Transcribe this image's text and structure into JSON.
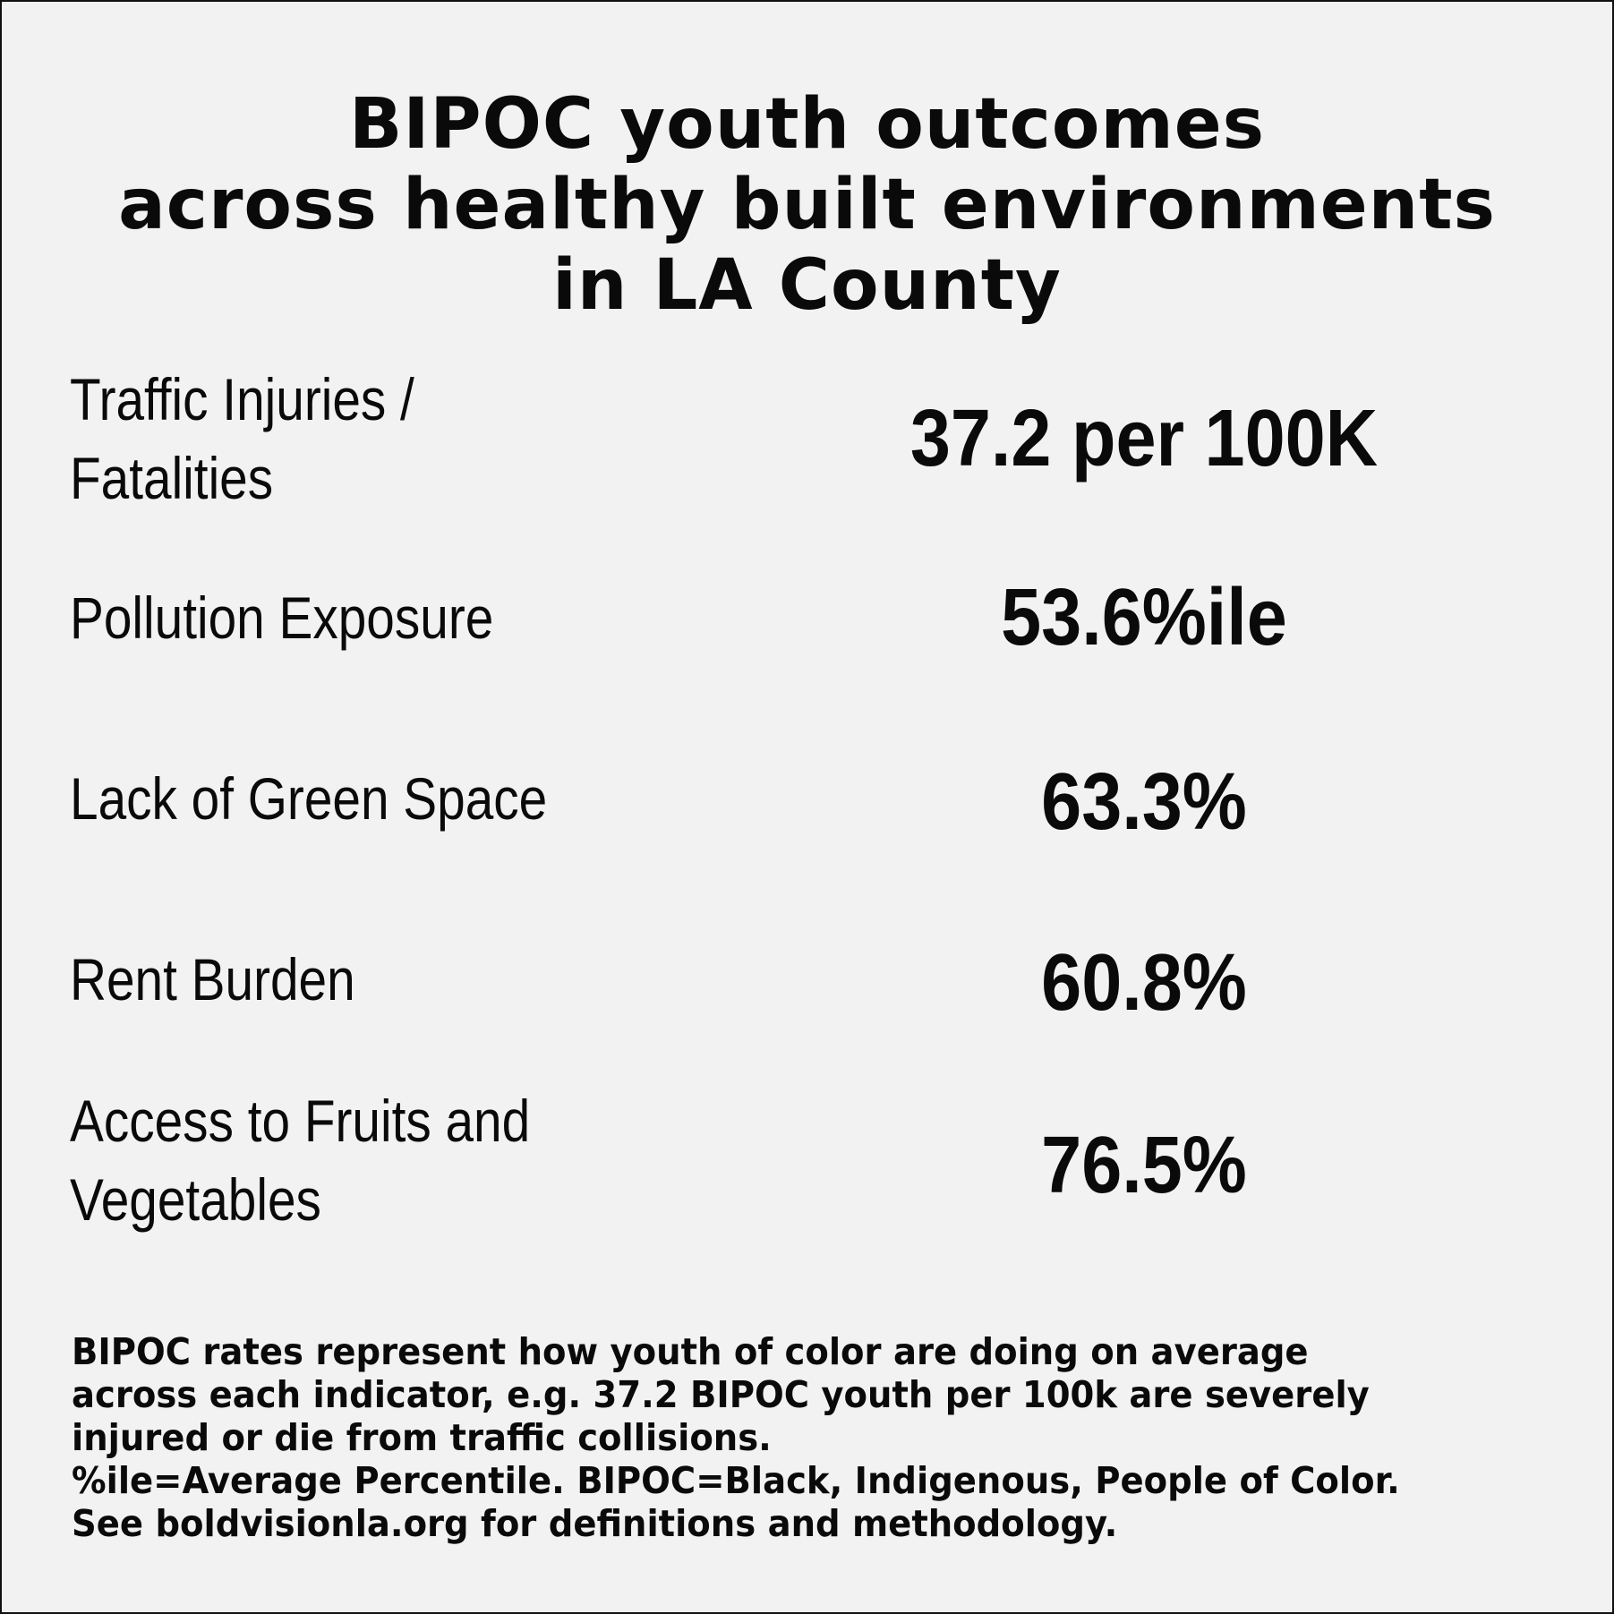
{
  "title": {
    "line1": "BIPOC youth outcomes",
    "line2": "across healthy built environments",
    "line3": "in LA County"
  },
  "indicators": [
    {
      "label_line1": "Traffic Injuries /",
      "label_line2": "Fatalities",
      "value": "37.2 per 100K"
    },
    {
      "label_line1": "Pollution Exposure",
      "label_line2": "",
      "value": "53.6%ile"
    },
    {
      "label_line1": "Lack of Green Space",
      "label_line2": "",
      "value": "63.3%"
    },
    {
      "label_line1": "Rent Burden",
      "label_line2": "",
      "value": "60.8%"
    },
    {
      "label_line1": "Access to Fruits and",
      "label_line2": "Vegetables",
      "value": "76.5%"
    }
  ],
  "footnote": {
    "line1": "BIPOC rates represent how youth of color are doing on average",
    "line2": "across each indicator, e.g. 37.2 BIPOC youth per 100k are severely",
    "line3": "injured or die from traffic collisions.",
    "line4": "%ile=Average Percentile. BIPOC=Black, Indigenous, People of Color.",
    "line5": "See boldvisionla.org for definitions and methodology."
  }
}
